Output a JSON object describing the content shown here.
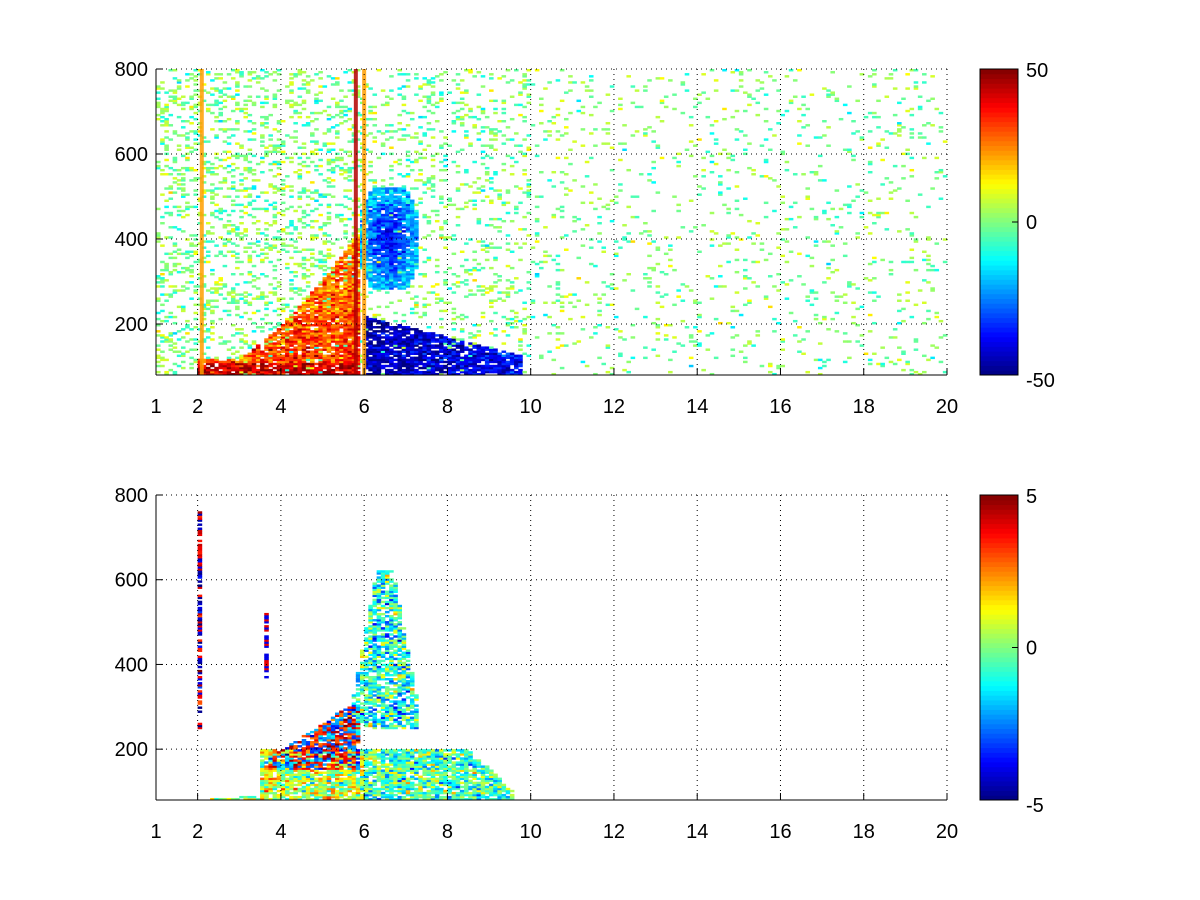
{
  "chart_data": [
    {
      "type": "heatmap",
      "title": "",
      "xlabel": "",
      "ylabel": "",
      "xlim": [
        1,
        20
      ],
      "ylim": [
        80,
        800
      ],
      "xticks": [
        1,
        2,
        4,
        6,
        8,
        10,
        12,
        14,
        16,
        18,
        20
      ],
      "xtick_labels": [
        "1",
        "2",
        "4",
        "6",
        "8",
        "10",
        "12",
        "14",
        "16",
        "18",
        "20"
      ],
      "yticks": [
        200,
        400,
        600,
        800
      ],
      "ytick_labels": [
        "200",
        "400",
        "600",
        "800"
      ],
      "grid": true,
      "colormap": "jet",
      "colorbar": {
        "clim": [
          -50,
          50
        ],
        "ticks": [
          -50,
          0,
          50
        ],
        "tick_labels": [
          "-50",
          "0",
          "50"
        ]
      },
      "vertical_marker_lines_x": [
        2.1,
        5.8,
        6.0
      ],
      "features": [
        {
          "name": "positive band",
          "x_range": [
            2.0,
            5.9
          ],
          "y_range": [
            80,
            420
          ],
          "approx_value": 35
        },
        {
          "name": "negative lobe",
          "x_range": [
            5.9,
            7.3
          ],
          "y_range": [
            280,
            520
          ],
          "approx_value": -40
        },
        {
          "name": "negative base",
          "x_range": [
            6.0,
            9.8
          ],
          "y_range": [
            80,
            220
          ],
          "approx_value": -45
        },
        {
          "name": "sparse scatter",
          "x_range": [
            1,
            20
          ],
          "y_range": [
            80,
            800
          ],
          "approx_value": 0
        }
      ]
    },
    {
      "type": "heatmap",
      "title": "",
      "xlabel": "",
      "ylabel": "",
      "xlim": [
        1,
        20
      ],
      "ylim": [
        80,
        800
      ],
      "xticks": [
        1,
        2,
        4,
        6,
        8,
        10,
        12,
        14,
        16,
        18,
        20
      ],
      "xtick_labels": [
        "1",
        "2",
        "4",
        "6",
        "8",
        "10",
        "12",
        "14",
        "16",
        "18",
        "20"
      ],
      "yticks": [
        200,
        400,
        600,
        800
      ],
      "ytick_labels": [
        "200",
        "400",
        "600",
        "800"
      ],
      "grid": true,
      "colormap": "jet",
      "colorbar": {
        "clim": [
          -5,
          5
        ],
        "ticks": [
          -5,
          0,
          5
        ],
        "tick_labels": [
          "-5",
          "0",
          "5"
        ]
      },
      "features": [
        {
          "name": "mixed high band",
          "x_range": [
            3.6,
            5.9
          ],
          "y_range": [
            150,
            300
          ],
          "approx_value": 3
        },
        {
          "name": "central plume",
          "x_range": [
            5.5,
            7.3
          ],
          "y_range": [
            250,
            620
          ],
          "approx_value": -1
        },
        {
          "name": "base mixture",
          "x_range": [
            2.0,
            9.6
          ],
          "y_range": [
            80,
            200
          ],
          "approx_value": 0
        },
        {
          "name": "streak near 2",
          "x_range": [
            2.05,
            2.15
          ],
          "y_range": [
            250,
            760
          ],
          "approx_value": -4
        }
      ]
    }
  ]
}
